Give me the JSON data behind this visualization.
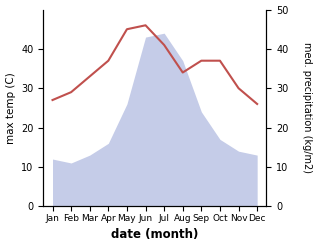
{
  "months": [
    "Jan",
    "Feb",
    "Mar",
    "Apr",
    "May",
    "Jun",
    "Jul",
    "Aug",
    "Sep",
    "Oct",
    "Nov",
    "Dec"
  ],
  "month_indices": [
    1,
    2,
    3,
    4,
    5,
    6,
    7,
    8,
    9,
    10,
    11,
    12
  ],
  "temperature": [
    27,
    29,
    33,
    37,
    45,
    46,
    41,
    34,
    37,
    37,
    30,
    26
  ],
  "precipitation": [
    12,
    11,
    13,
    16,
    26,
    43,
    44,
    37,
    24,
    17,
    14,
    13
  ],
  "temp_color": "#c0504d",
  "precip_fill_color": "#c5cce8",
  "temp_ylim": [
    0,
    50
  ],
  "precip_ylim": [
    0,
    50
  ],
  "temp_yticks": [
    0,
    10,
    20,
    30,
    40
  ],
  "precip_yticks": [
    0,
    10,
    20,
    30,
    40,
    50
  ],
  "xlabel": "date (month)",
  "ylabel_left": "max temp (C)",
  "ylabel_right": "med. precipitation (kg/m2)",
  "xlim": [
    0.5,
    12.5
  ],
  "bg_color": "#ffffff"
}
